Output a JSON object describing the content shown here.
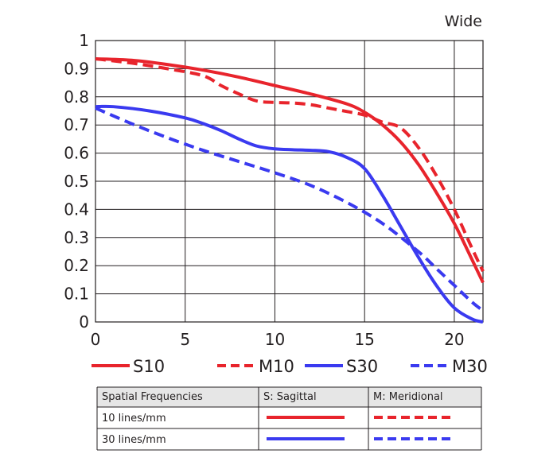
{
  "corner_label": "Wide",
  "colors": {
    "red": "#e8242c",
    "blue": "#3a3af0",
    "grid": "#231f20",
    "header_fill": "#e6e6e6"
  },
  "chart_data": {
    "type": "line",
    "title": "",
    "xlabel": "",
    "ylabel": "",
    "xlim": [
      0,
      21.6
    ],
    "ylim": [
      0,
      1
    ],
    "xticks": [
      0,
      5,
      10,
      15,
      20
    ],
    "xtick_labels": [
      "0",
      "5",
      "10",
      "15",
      "20"
    ],
    "yticks": [
      0,
      0.1,
      0.2,
      0.3,
      0.4,
      0.5,
      0.6,
      0.7,
      0.8,
      0.9,
      1
    ],
    "ytick_labels": [
      "0",
      "0.1",
      "0.2",
      "0.3",
      "0.4",
      "0.5",
      "0.6",
      "0.7",
      "0.8",
      "0.9",
      "1"
    ],
    "grid": true,
    "legend_position": "bottom",
    "series": [
      {
        "name": "S10",
        "color": "#e8242c",
        "dash": "solid",
        "x": [
          0,
          2,
          4,
          6,
          8,
          10,
          12,
          14,
          15,
          16,
          17,
          18,
          19,
          20,
          21,
          21.6
        ],
        "y": [
          0.935,
          0.93,
          0.915,
          0.895,
          0.87,
          0.84,
          0.81,
          0.775,
          0.745,
          0.7,
          0.64,
          0.56,
          0.46,
          0.35,
          0.22,
          0.14
        ]
      },
      {
        "name": "M10",
        "color": "#e8242c",
        "dash": "dashed",
        "x": [
          0,
          2,
          4,
          6,
          7,
          8,
          9,
          10,
          11,
          12,
          13,
          14,
          15,
          16,
          17,
          18,
          19,
          20,
          21,
          21.6
        ],
        "y": [
          0.935,
          0.92,
          0.9,
          0.875,
          0.84,
          0.81,
          0.785,
          0.78,
          0.778,
          0.772,
          0.76,
          0.748,
          0.735,
          0.71,
          0.69,
          0.62,
          0.52,
          0.4,
          0.26,
          0.18
        ]
      },
      {
        "name": "S30",
        "color": "#3a3af0",
        "dash": "solid",
        "x": [
          0,
          1,
          3,
          5,
          6,
          7,
          8,
          9,
          10,
          11,
          12,
          13,
          14,
          15,
          16,
          17,
          18,
          19,
          20,
          21,
          21.6
        ],
        "y": [
          0.765,
          0.765,
          0.75,
          0.725,
          0.705,
          0.68,
          0.65,
          0.625,
          0.615,
          0.612,
          0.61,
          0.605,
          0.585,
          0.545,
          0.45,
          0.34,
          0.23,
          0.13,
          0.05,
          0.01,
          0.0
        ]
      },
      {
        "name": "M30",
        "color": "#3a3af0",
        "dash": "dashed",
        "x": [
          0,
          2,
          4,
          6,
          8,
          10,
          12,
          14,
          16,
          18,
          19,
          20,
          21,
          21.6
        ],
        "y": [
          0.76,
          0.705,
          0.655,
          0.61,
          0.57,
          0.53,
          0.485,
          0.425,
          0.35,
          0.25,
          0.19,
          0.13,
          0.07,
          0.04
        ]
      }
    ]
  },
  "table": {
    "headers": [
      "Spatial Frequencies",
      "S: Sagittal",
      "M: Meridional"
    ],
    "rows": [
      {
        "label": "10 lines/mm",
        "sagittal_color": "#e8242c",
        "meridional_color": "#e8242c"
      },
      {
        "label": "30 lines/mm",
        "sagittal_color": "#3a3af0",
        "meridional_color": "#3a3af0"
      }
    ]
  }
}
